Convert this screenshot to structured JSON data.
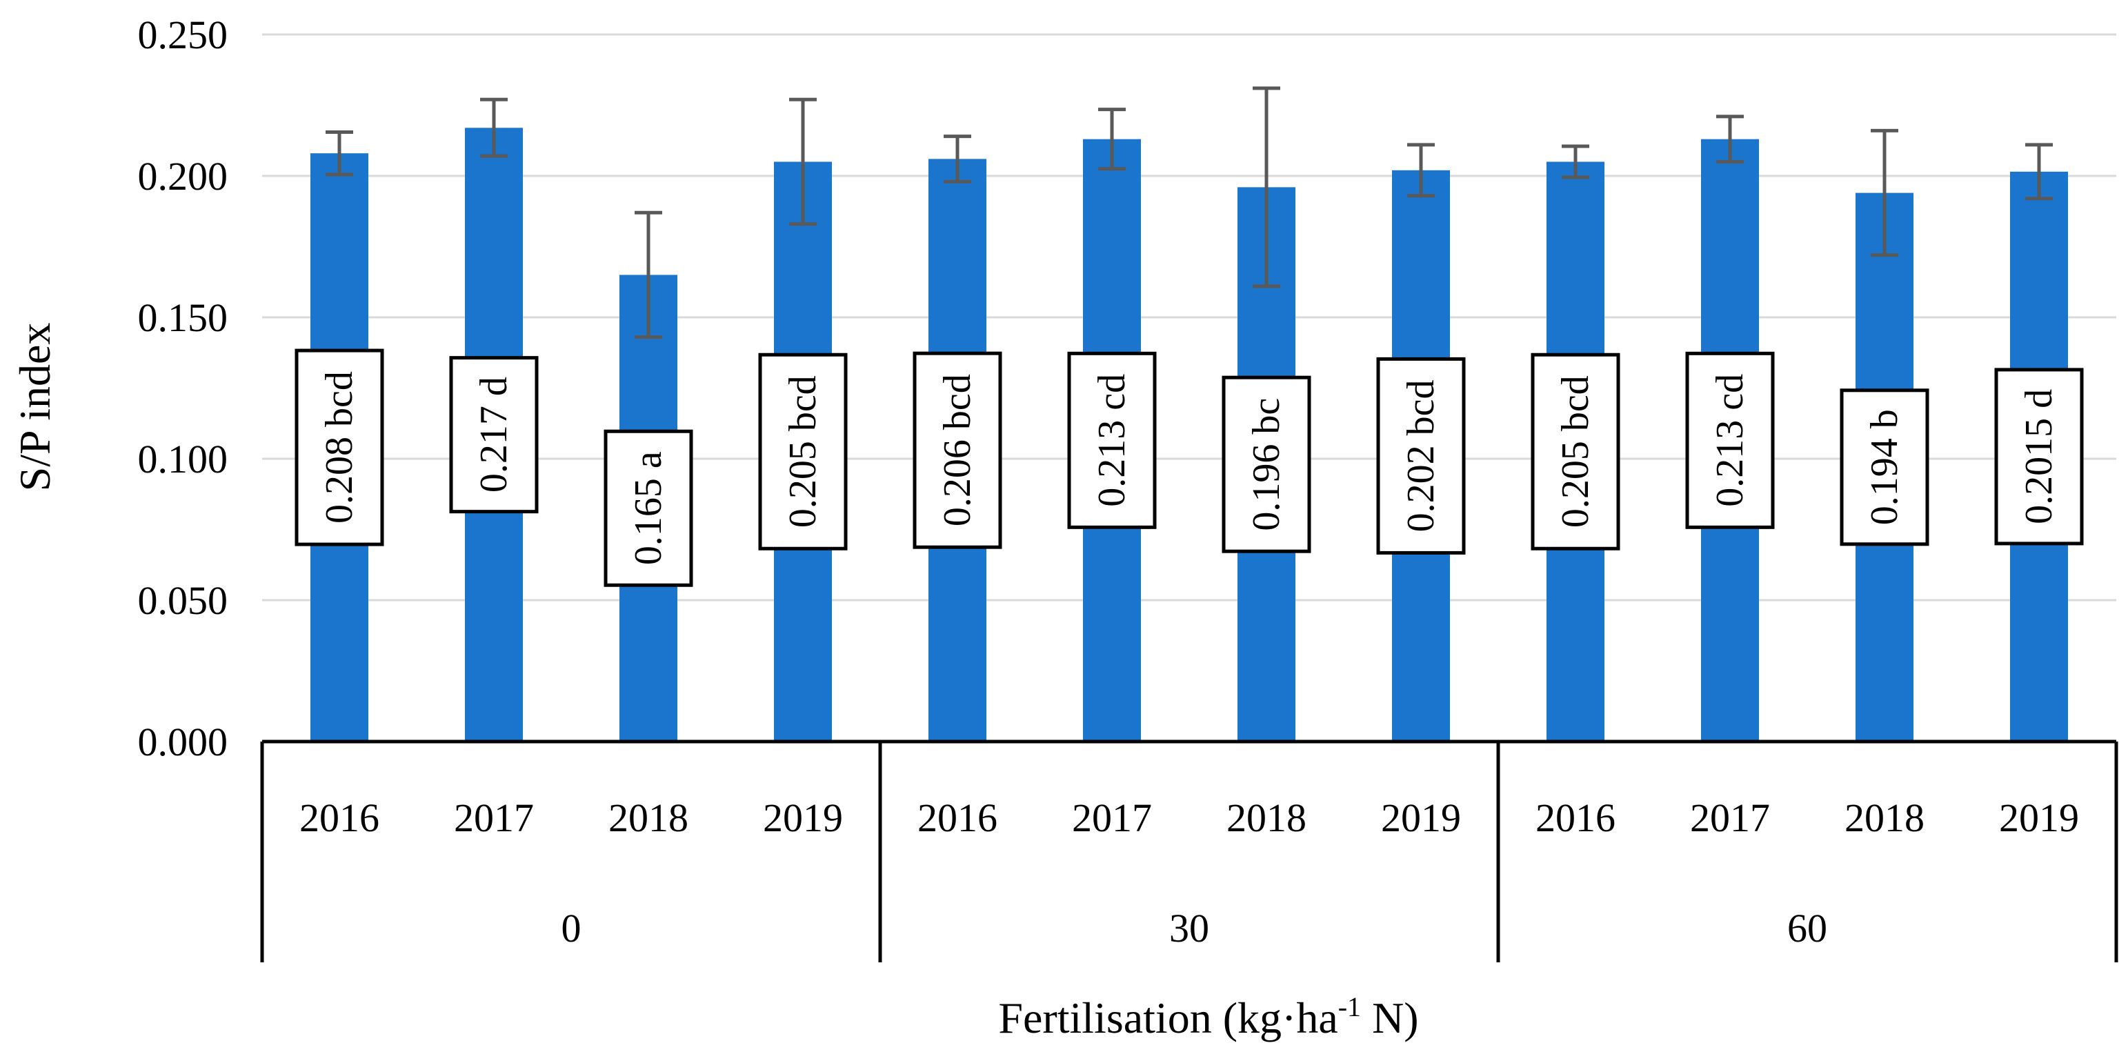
{
  "chart_data": {
    "type": "bar",
    "title": "",
    "ylabel": "S/P index",
    "xlabel": "Fertilisation (kg·ha",
    "xlabel_sup": "-1",
    "xlabel_end": " N)",
    "ylim": [
      0,
      0.25
    ],
    "yticks": [
      "0.000",
      "0.050",
      "0.100",
      "0.150",
      "0.200",
      "0.250"
    ],
    "bar_color": "#1B75CC",
    "error_color": "#595959",
    "groups": [
      {
        "name": "0",
        "bars": [
          {
            "year": "2016",
            "value": 0.208,
            "err": 0.0075,
            "label": "0.208 bcd"
          },
          {
            "year": "2017",
            "value": 0.217,
            "err": 0.01,
            "label": "0.217 d"
          },
          {
            "year": "2018",
            "value": 0.165,
            "err": 0.022,
            "label": "0.165 a"
          },
          {
            "year": "2019",
            "value": 0.205,
            "err": 0.022,
            "label": "0.205 bcd"
          }
        ]
      },
      {
        "name": "30",
        "bars": [
          {
            "year": "2016",
            "value": 0.206,
            "err": 0.008,
            "label": "0.206 bcd"
          },
          {
            "year": "2017",
            "value": 0.213,
            "err": 0.0105,
            "label": "0.213 cd"
          },
          {
            "year": "2018",
            "value": 0.196,
            "err": 0.035,
            "label": "0.196 bc"
          },
          {
            "year": "2019",
            "value": 0.202,
            "err": 0.009,
            "label": "0.202 bcd"
          }
        ]
      },
      {
        "name": "60",
        "bars": [
          {
            "year": "2016",
            "value": 0.205,
            "err": 0.0055,
            "label": "0.205 bcd"
          },
          {
            "year": "2017",
            "value": 0.213,
            "err": 0.008,
            "label": "0.213 cd"
          },
          {
            "year": "2018",
            "value": 0.194,
            "err": 0.022,
            "label": "0.194 b"
          },
          {
            "year": "2019",
            "value": 0.2015,
            "err": 0.0095,
            "label": "0.2015 d"
          }
        ]
      }
    ]
  }
}
